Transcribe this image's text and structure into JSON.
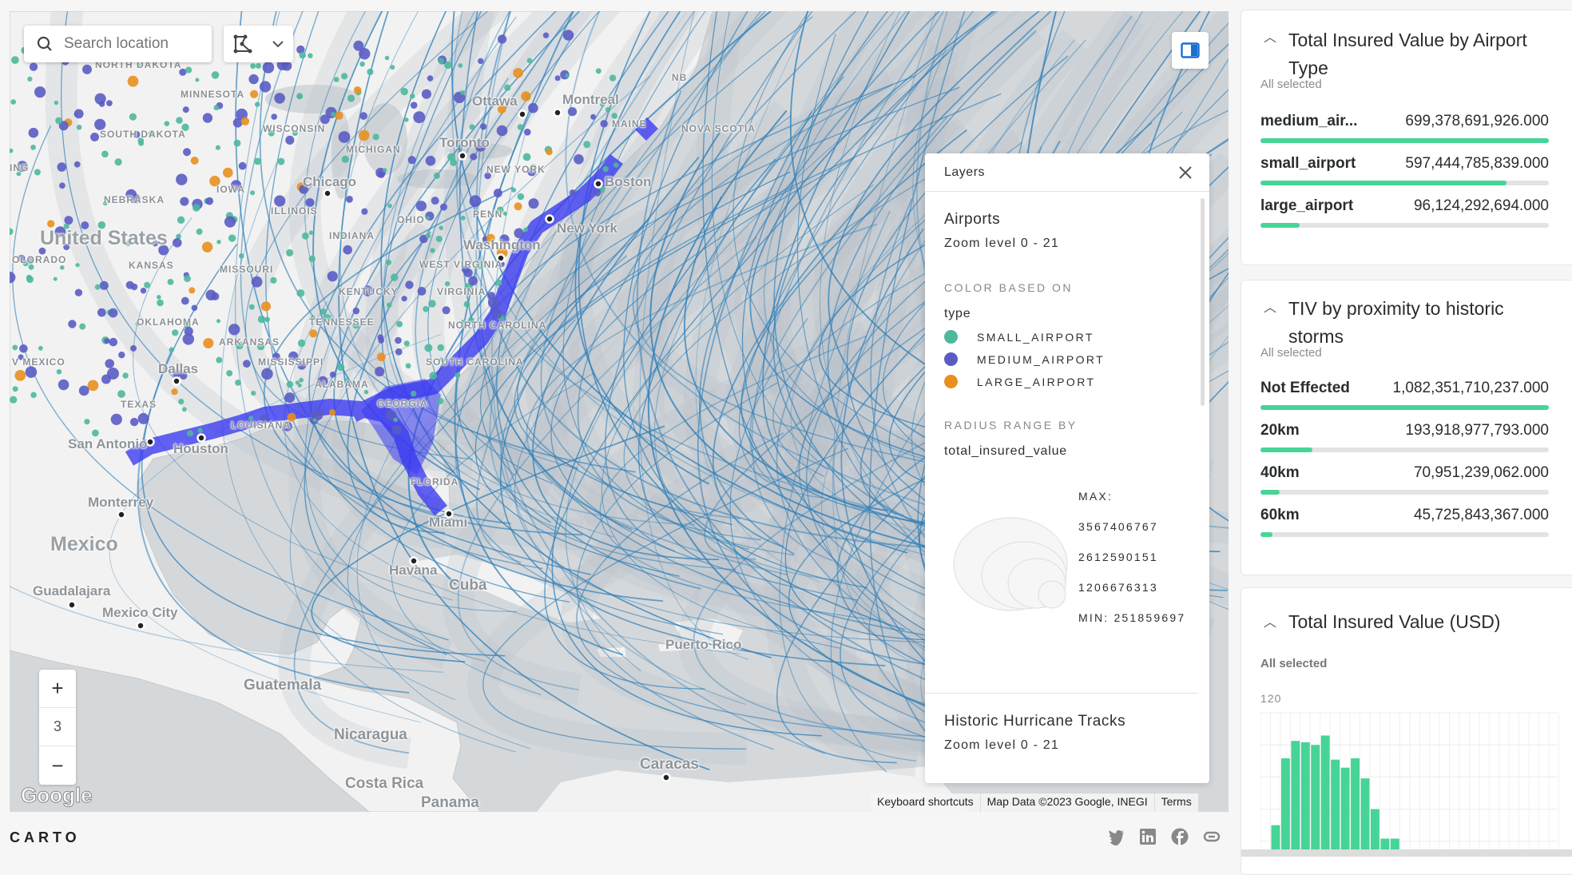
{
  "map": {
    "search_placeholder": "Search location",
    "zoom_level": "3",
    "zoom_in": "+",
    "zoom_out": "−",
    "google_logo": "Google",
    "attribution": [
      "Keyboard shortcuts",
      "Map Data ©2023 Google, INEGI",
      "Terms"
    ],
    "countries": [
      "United States",
      "Mexico",
      "Cuba"
    ],
    "cities": [
      "Havana",
      "Miami",
      "Washington",
      "New York",
      "Boston",
      "Toronto",
      "Ottawa",
      "Montreal",
      "Chicago",
      "Dallas",
      "Houston",
      "San Antonio",
      "Monterrey",
      "Guadalajara",
      "Mexico City",
      "Guatemala",
      "Nicaragua",
      "Costa Rica",
      "Panama",
      "Caracas",
      "Puerto Rico"
    ],
    "regions": [
      "NB",
      "NOVA SCOTIA",
      "MAINE",
      "MINNESOTA",
      "WISCONSIN",
      "MICHIGAN",
      "IOWA",
      "ILLINOIS",
      "INDIANA",
      "OHIO",
      "PENN",
      "NEW YORK",
      "NEBRASKA",
      "SOUTH DAKOTA",
      "NORTH DAKOTA",
      "KANSAS",
      "MISSOURI",
      "KENTUCKY",
      "WEST VIRGINIA",
      "VIRGINIA",
      "TENNESSEE",
      "NORTH CAROLINA",
      "OKLAHOMA",
      "ARKANSAS",
      "MISSISSIPPI",
      "ALABAMA",
      "SOUTH CAROLINA",
      "GEORGIA",
      "LOUISIANA",
      "TEXAS",
      "FLORIDA",
      "OLORADO",
      "V MEXICO",
      "ING"
    ],
    "colors": {
      "water": "#d5d8db",
      "land": "#f2f2f2",
      "tracks": "#2f7fb8",
      "storm_buffer": "#3b3bf0"
    }
  },
  "layers": {
    "title": "Layers",
    "airports": {
      "name": "Airports",
      "zoom": "Zoom level 0 - 21",
      "color_caption": "COLOR BASED ON",
      "color_field": "type",
      "legend": [
        {
          "label": "SMALL_AIRPORT",
          "color": "#4cb89c"
        },
        {
          "label": "MEDIUM_AIRPORT",
          "color": "#5a5cc4"
        },
        {
          "label": "LARGE_AIRPORT",
          "color": "#e8901e"
        }
      ],
      "radius_caption": "RADIUS RANGE BY",
      "radius_field": "total_insured_value",
      "radius_labels": [
        "MAX:",
        "3567406767",
        "2612590151",
        "1206676313",
        "MIN: 251859697"
      ]
    },
    "hurricanes": {
      "name": "Historic Hurricane Tracks",
      "zoom": "Zoom level 0 - 21"
    }
  },
  "widgets": [
    {
      "title": "Total Insured Value by Airport Type",
      "status": "All selected",
      "rows": [
        {
          "label": "medium_air...",
          "value": "699,378,691,926.000",
          "pct": 100
        },
        {
          "label": "small_airport",
          "value": "597,444,785,839.000",
          "pct": 85.4
        },
        {
          "label": "large_airport",
          "value": "96,124,292,694.000",
          "pct": 13.7
        }
      ]
    },
    {
      "title": "TIV by proximity to historic storms",
      "status": "All selected",
      "rows": [
        {
          "label": "Not Effected",
          "value": "1,082,351,710,237.000",
          "pct": 100
        },
        {
          "label": "20km",
          "value": "193,918,977,793.000",
          "pct": 17.9
        },
        {
          "label": "40km",
          "value": "70,951,239,062.000",
          "pct": 6.6
        },
        {
          "label": "60km",
          "value": "45,725,843,367.000",
          "pct": 4.2
        }
      ]
    },
    {
      "title": "Total Insured Value (USD)",
      "status": "All selected",
      "y_tick": "120"
    }
  ],
  "chart_data": {
    "type": "bar",
    "title": "Total Insured Value (USD)",
    "ylim": [
      0,
      120
    ],
    "y_ticks": [
      "120"
    ],
    "grid": true,
    "bar_color": "#47d497",
    "values": [
      0,
      36,
      86,
      99,
      98,
      96,
      103,
      85,
      79,
      86,
      71,
      48,
      26,
      26,
      0,
      0,
      0,
      0,
      0,
      0,
      0,
      0,
      0,
      0,
      0,
      0,
      0,
      0,
      0,
      0
    ]
  },
  "footer": {
    "logo": "CARTO",
    "social": [
      "twitter-icon",
      "linkedin-icon",
      "facebook-icon",
      "link-icon"
    ]
  }
}
